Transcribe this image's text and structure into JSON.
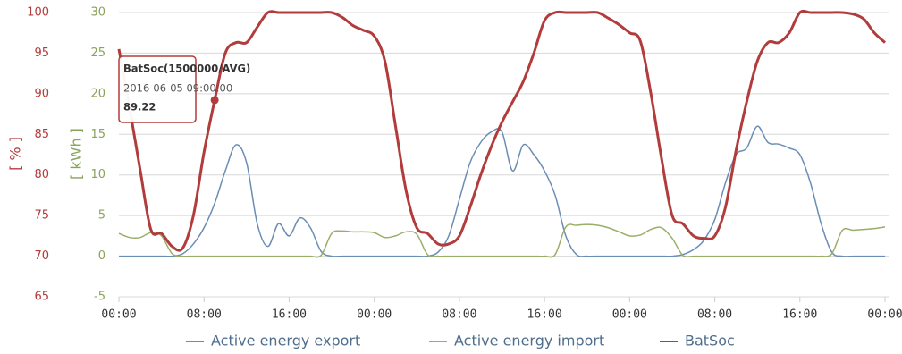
{
  "chart_data": {
    "type": "line",
    "ylabel": "[ % ]",
    "y2label": "[ kWh ]",
    "xlim": [
      0,
      72
    ],
    "xticks": [
      {
        "value": 0,
        "label": "00:00"
      },
      {
        "value": 8,
        "label": "08:00"
      },
      {
        "value": 16,
        "label": "16:00"
      },
      {
        "value": 24,
        "label": "00:00"
      },
      {
        "value": 32,
        "label": "08:00"
      },
      {
        "value": 40,
        "label": "16:00"
      },
      {
        "value": 48,
        "label": "00:00"
      },
      {
        "value": 56,
        "label": "08:00"
      },
      {
        "value": 64,
        "label": "16:00"
      },
      {
        "value": 72,
        "label": "00:00"
      }
    ],
    "ylim": [
      65,
      100
    ],
    "yticks": [
      65,
      70,
      75,
      80,
      85,
      90,
      95,
      100
    ],
    "y2lim": [
      -5,
      30
    ],
    "y2ticks": [
      -5,
      0,
      5,
      10,
      15,
      20,
      25,
      30
    ],
    "grid": true,
    "x": [
      0,
      1,
      2,
      3,
      4,
      5,
      6,
      7,
      8,
      9,
      10,
      11,
      12,
      13,
      14,
      15,
      16,
      17,
      18,
      19,
      20,
      21,
      22,
      23,
      24,
      25,
      26,
      27,
      28,
      29,
      30,
      31,
      32,
      33,
      34,
      35,
      36,
      37,
      38,
      39,
      40,
      41,
      42,
      43,
      44,
      45,
      46,
      47,
      48,
      49,
      50,
      51,
      52,
      53,
      54,
      55,
      56,
      57,
      58,
      59,
      60,
      61,
      62,
      63,
      64,
      65,
      66,
      67,
      68,
      69,
      70,
      71,
      72
    ],
    "series": [
      {
        "name": "Active energy export",
        "color": "#6a8db4",
        "axis": "y2",
        "values": [
          0,
          0,
          0,
          0,
          0,
          0,
          0.3,
          1.5,
          3.5,
          6.5,
          10.5,
          13.7,
          11.5,
          4,
          1.2,
          4,
          2.5,
          4.7,
          3.5,
          0.6,
          0,
          0,
          0,
          0,
          0,
          0,
          0,
          0,
          0,
          0,
          0.5,
          2.5,
          7,
          11.5,
          14,
          15.3,
          15.3,
          10.5,
          13.7,
          12.5,
          10.5,
          7.5,
          2.5,
          0.2,
          0,
          0,
          0,
          0,
          0,
          0,
          0,
          0,
          0,
          0.2,
          0.8,
          2,
          4.5,
          9,
          12.5,
          13.3,
          16,
          14,
          13.8,
          13.3,
          12.5,
          9,
          4,
          0.5,
          0,
          0,
          0,
          0,
          0
        ]
      },
      {
        "name": "Active energy import",
        "color": "#9aae68",
        "axis": "y2",
        "values": [
          2.8,
          2.3,
          2.3,
          2.9,
          2.5,
          0.3,
          0,
          0,
          0,
          0,
          0,
          0,
          0,
          0,
          0,
          0,
          0,
          0,
          0,
          0.1,
          2.8,
          3.1,
          3,
          3,
          2.9,
          2.3,
          2.5,
          3,
          2.7,
          0.2,
          0,
          0,
          0,
          0,
          0,
          0,
          0,
          0,
          0,
          0,
          0,
          0.2,
          3.6,
          3.8,
          3.9,
          3.8,
          3.5,
          3,
          2.5,
          2.6,
          3.3,
          3.5,
          2.2,
          0.1,
          0,
          0,
          0,
          0,
          0,
          0,
          0,
          0,
          0,
          0,
          0,
          0,
          0,
          0.3,
          3.2,
          3.2,
          3.3,
          3.4,
          3.6
        ]
      },
      {
        "name": "BatSoc",
        "color": "#b23c3c",
        "values": [
          95.5,
          88.3,
          80.6,
          73.3,
          72.8,
          71.2,
          71,
          75,
          82.8,
          89.22,
          95,
          96.3,
          96.3,
          98.2,
          100,
          100,
          100,
          100,
          100,
          100,
          100,
          99.4,
          98.4,
          97.8,
          97.1,
          94,
          86,
          78,
          73.5,
          72.8,
          71.5,
          71.5,
          72.5,
          76,
          80,
          83.5,
          86.5,
          89,
          91.5,
          95,
          99,
          100,
          100,
          100,
          100,
          100,
          99.3,
          98.5,
          97.5,
          96.5,
          90,
          82,
          75,
          74,
          72.5,
          72.2,
          72.5,
          76,
          83,
          89,
          94,
          96.3,
          96.3,
          97.5,
          100,
          100,
          100,
          100,
          100,
          99.8,
          99.2,
          97.5,
          96.3
        ]
      }
    ],
    "tooltip": {
      "title": "BatSoc(1500000/AVG)",
      "time": "2016-06-05 09:00:00",
      "value": 89.22,
      "series": 2,
      "index": 9
    }
  }
}
